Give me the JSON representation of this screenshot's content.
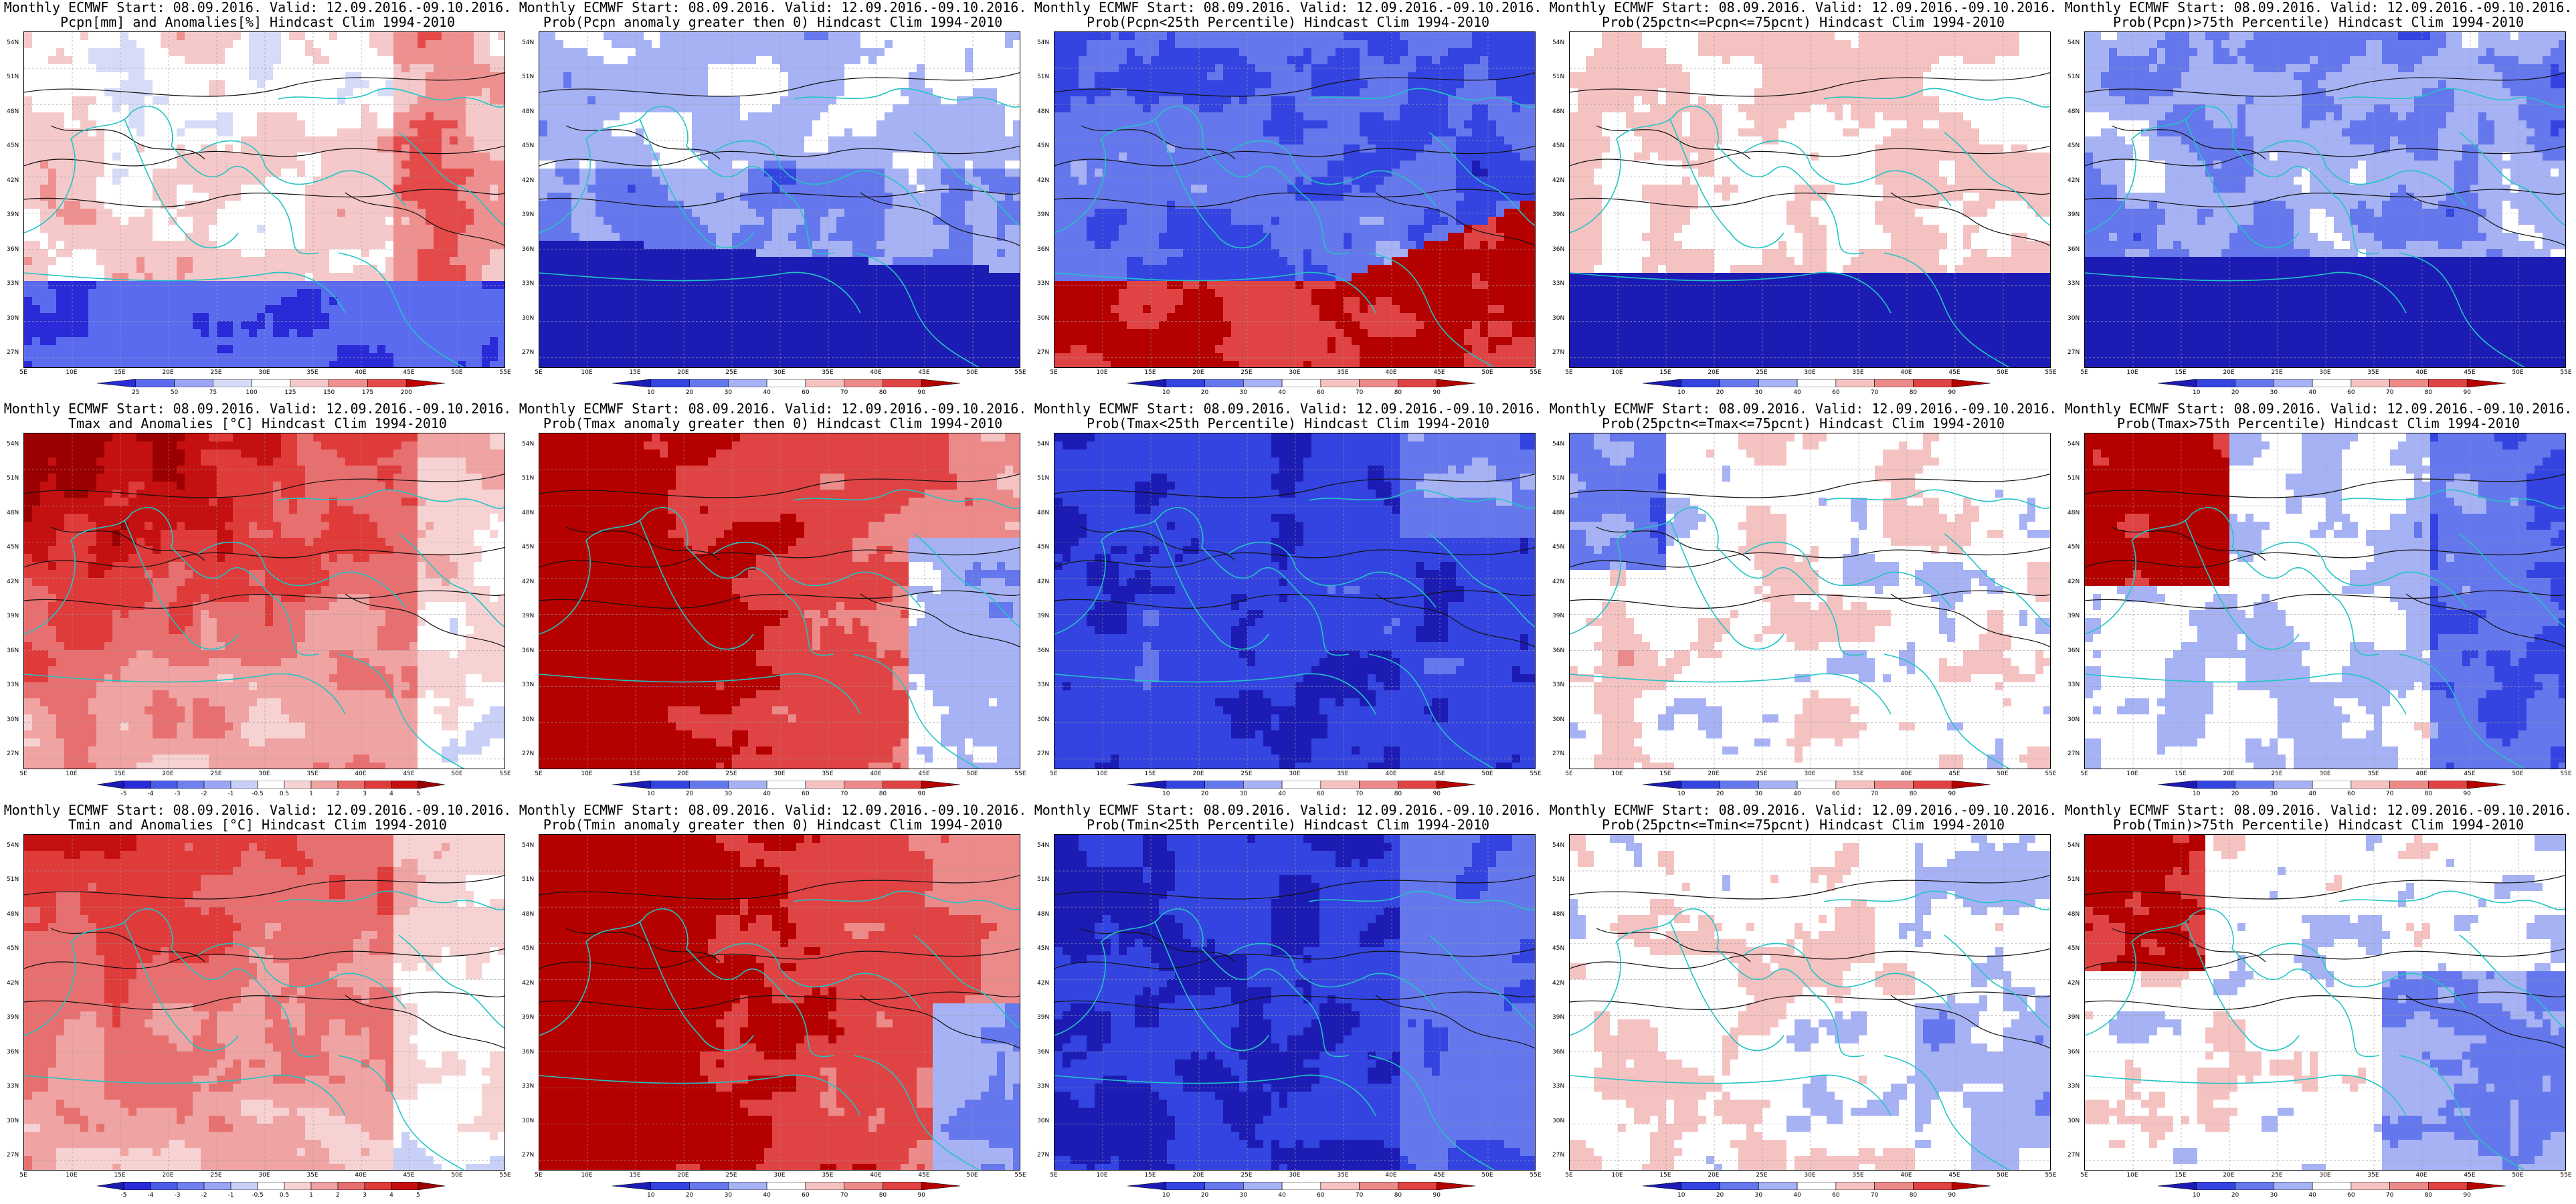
{
  "lat_labels": [
    "54N",
    "51N",
    "48N",
    "45N",
    "42N",
    "39N",
    "36N",
    "33N",
    "30N",
    "27N"
  ],
  "lon_labels": [
    "5E",
    "10E",
    "15E",
    "20E",
    "25E",
    "30E",
    "35E",
    "40E",
    "45E",
    "50E",
    "55E"
  ],
  "legends": {
    "pcpn_anom": {
      "labels": [
        "25",
        "50",
        "75",
        "100",
        "125",
        "150",
        "175",
        "200"
      ],
      "colors": [
        "#2a2ad8",
        "#5b6bf0",
        "#9aa6f5",
        "#d6dcf7",
        "#ffffff",
        "#f5c9c9",
        "#ef9090",
        "#e44a4a",
        "#c00000"
      ]
    },
    "temp_anom": {
      "labels": [
        "-5",
        "-4",
        "-3",
        "-2",
        "-1",
        "-0.5",
        "0.5",
        "1",
        "2",
        "3",
        "4",
        "5"
      ],
      "colors": [
        "#1c1cb4",
        "#2a2ad8",
        "#4b5de8",
        "#7081ef",
        "#9aa6f5",
        "#c8d0f7",
        "#ffffff",
        "#f7d2d2",
        "#f0a3a3",
        "#e86f6f",
        "#df3b3b",
        "#c41010",
        "#9a0000"
      ]
    },
    "prob": {
      "labels": [
        "10",
        "20",
        "30",
        "40",
        "60",
        "70",
        "80",
        "90"
      ],
      "colors": [
        "#1c1cb4",
        "#3444e0",
        "#6577ec",
        "#a7b2f4",
        "#ffffff",
        "#f5c2c2",
        "#ec8a8a",
        "#e04343",
        "#b50000"
      ]
    }
  },
  "panels": [
    {
      "title1": "Monthly ECMWF Start: 08.09.2016. Valid: 12.09.2016.-09.10.2016.",
      "title2": "Pcpn[mm] and Anomalies[%] Hindcast Clim 1994-2010",
      "legend": "pcpn_anom",
      "scheme": "pcpn_anom"
    },
    {
      "title1": "Monthly ECMWF Start: 08.09.2016. Valid: 12.09.2016.-09.10.2016.",
      "title2": "Prob(Pcpn anomaly greater then 0) Hindcast Clim 1994-2010",
      "legend": "prob",
      "scheme": "pcpn_gt0"
    },
    {
      "title1": "Monthly ECMWF Start: 08.09.2016. Valid: 12.09.2016.-09.10.2016.",
      "title2": "Prob(Pcpn<25th Percentile) Hindcast Clim 1994-2010",
      "legend": "prob",
      "scheme": "pcpn_lt25"
    },
    {
      "title1": "Monthly ECMWF Start: 08.09.2016. Valid: 12.09.2016.-09.10.2016.",
      "title2": "Prob(25pctn<=Pcpn<=75pcnt) Hindcast Clim 1994-2010",
      "legend": "prob",
      "scheme": "pcpn_mid"
    },
    {
      "title1": "Monthly ECMWF Start: 08.09.2016. Valid: 12.09.2016.-09.10.2016.",
      "title2": "Prob(Pcpn)>75th Percentile) Hindcast Clim 1994-2010",
      "legend": "prob",
      "scheme": "pcpn_gt75"
    },
    {
      "title1": "Monthly ECMWF Start: 08.09.2016. Valid: 12.09.2016.-09.10.2016.",
      "title2": "Tmax and Anomalies [°C] Hindcast Clim 1994-2010",
      "legend": "temp_anom",
      "scheme": "tmax_anom"
    },
    {
      "title1": "Monthly ECMWF Start: 08.09.2016. Valid: 12.09.2016.-09.10.2016.",
      "title2": "Prob(Tmax anomaly greater then 0) Hindcast Clim 1994-2010",
      "legend": "prob",
      "scheme": "tmax_gt0"
    },
    {
      "title1": "Monthly ECMWF Start: 08.09.2016. Valid: 12.09.2016.-09.10.2016.",
      "title2": "Prob(Tmax<25th Percentile) Hindcast Clim 1994-2010",
      "legend": "prob",
      "scheme": "tmax_lt25"
    },
    {
      "title1": "Monthly ECMWF Start: 08.09.2016. Valid: 12.09.2016.-09.10.2016.",
      "title2": "Prob(25pctn<=Tmax<=75pcnt) Hindcast Clim 1994-2010",
      "legend": "prob",
      "scheme": "tmax_mid"
    },
    {
      "title1": "Monthly ECMWF Start: 08.09.2016. Valid: 12.09.2016.-09.10.2016.",
      "title2": "Prob(Tmax>75th Percentile) Hindcast Clim 1994-2010",
      "legend": "prob",
      "scheme": "tmax_gt75"
    },
    {
      "title1": "Monthly ECMWF Start: 08.09.2016. Valid: 12.09.2016.-09.10.2016.",
      "title2": "Tmin and Anomalies [°C] Hindcast Clim 1994-2010",
      "legend": "temp_anom",
      "scheme": "tmin_anom"
    },
    {
      "title1": "Monthly ECMWF Start: 08.09.2016. Valid: 12.09.2016.-09.10.2016.",
      "title2": "Prob(Tmin anomaly greater then 0) Hindcast Clim 1994-2010",
      "legend": "prob",
      "scheme": "tmin_gt0"
    },
    {
      "title1": "Monthly ECMWF Start: 08.09.2016. Valid: 12.09.2016.-09.10.2016.",
      "title2": "Prob(Tmin<25th Percentile) Hindcast Clim 1994-2010",
      "legend": "prob",
      "scheme": "tmin_lt25"
    },
    {
      "title1": "Monthly ECMWF Start: 08.09.2016. Valid: 12.09.2016.-09.10.2016.",
      "title2": "Prob(25pctn<=Tmin<=75pcnt) Hindcast Clim 1994-2010",
      "legend": "prob",
      "scheme": "tmin_mid"
    },
    {
      "title1": "Monthly ECMWF Start: 08.09.2016. Valid: 12.09.2016.-09.10.2016.",
      "title2": "Prob(Tmin)>75th Percentile) Hindcast Clim 1994-2010",
      "legend": "prob",
      "scheme": "tmin_gt75"
    }
  ],
  "colors": {
    "coast": "#22c4c4",
    "contour": "#111111",
    "grid": "#9a9a9a"
  }
}
